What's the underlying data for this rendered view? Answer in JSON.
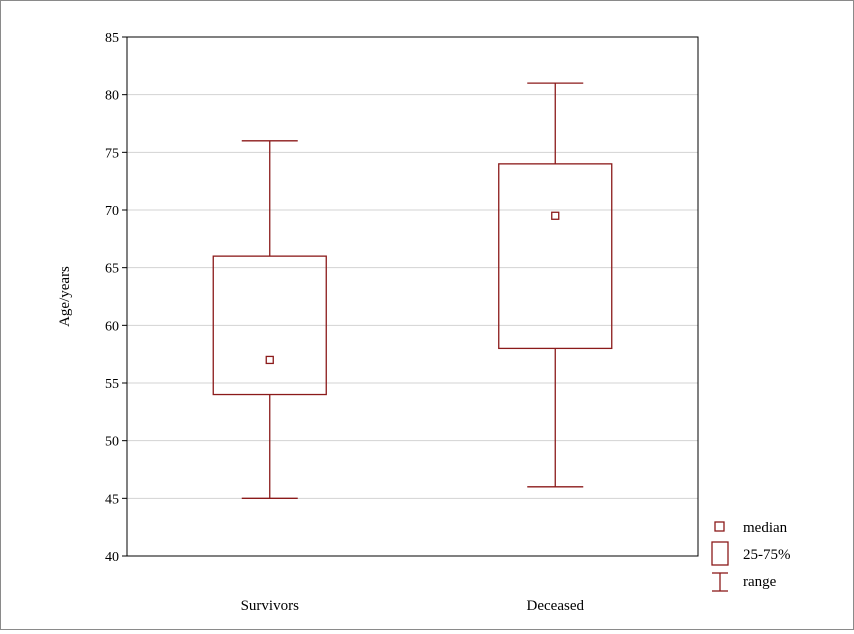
{
  "chart_data": {
    "type": "box",
    "ylabel": "Age/years",
    "ylim": [
      40,
      85
    ],
    "yticks": [
      "40",
      "45",
      "50",
      "55",
      "60",
      "65",
      "70",
      "75",
      "80",
      "85"
    ],
    "grid": true,
    "legend": {
      "placement": "bottom-right",
      "entries": [
        "median",
        "25-75%",
        "range"
      ]
    },
    "categories": [
      "Survivors",
      "Deceased"
    ],
    "series": [
      {
        "category": "Survivors",
        "min": 45,
        "q1": 54,
        "median": 57,
        "q3": 66,
        "max": 76
      },
      {
        "category": "Deceased",
        "min": 46,
        "q1": 58,
        "median": 69.5,
        "q3": 74,
        "max": 81
      }
    ],
    "color": "#8b1a1a"
  }
}
